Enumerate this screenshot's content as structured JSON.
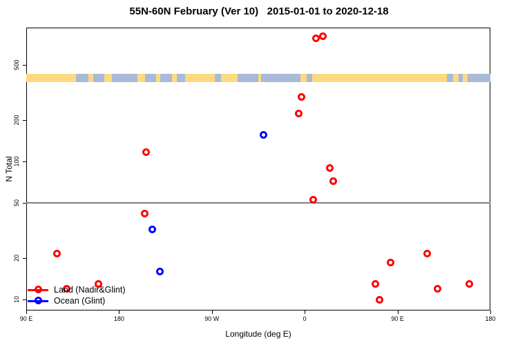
{
  "title": "55N-60N February (Ver 10)   2015-01-01 to 2020-12-18",
  "colors": {
    "land_series": "#FF0000",
    "ocean_series": "#0000FF",
    "map_land": "#FFD97F",
    "map_ocean": "#A8BAD8",
    "reference_line": "#808080",
    "axis": "#000000"
  },
  "legend": [
    {
      "label": "Land (Nadir&Glint)",
      "color": "#FF0000"
    },
    {
      "label": "Ocean (Glint)",
      "color": "#0000FF"
    }
  ],
  "chart_data": {
    "type": "scatter",
    "title": "55N-60N February (Ver 10)   2015-01-01 to 2020-12-18",
    "xlabel": "Longitude (deg E)",
    "ylabel": "N Total",
    "y_scale": "log",
    "x_axis_range_deg": [
      90,
      540
    ],
    "y_axis_range": [
      8.5,
      900
    ],
    "x_ticks": [
      {
        "value": 90,
        "label": "90 E"
      },
      {
        "value": 180,
        "label": "180"
      },
      {
        "value": 270,
        "label": "90 W"
      },
      {
        "value": 360,
        "label": "0"
      },
      {
        "value": 450,
        "label": "90 E"
      },
      {
        "value": 540,
        "label": "180"
      }
    ],
    "y_ticks": [
      {
        "value": 10,
        "label": "10"
      },
      {
        "value": 20,
        "label": "20"
      },
      {
        "value": 50,
        "label": "50"
      },
      {
        "value": 100,
        "label": "100"
      },
      {
        "value": 200,
        "label": "200"
      },
      {
        "value": 500,
        "label": "500"
      }
    ],
    "reference_line_y": 50,
    "grid": false,
    "legend_position": "bottom-left",
    "note": "x values are axis degrees east of 0; values above 360 are the repeated 90E-180E band",
    "series": [
      {
        "name": "Land (Nadir&Glint)",
        "color": "#FF0000",
        "points": [
          {
            "x": 371,
            "y": 785
          },
          {
            "x": 377.5,
            "y": 805
          },
          {
            "x": 357,
            "y": 295
          },
          {
            "x": 354,
            "y": 222
          },
          {
            "x": 206,
            "y": 117
          },
          {
            "x": 384,
            "y": 90
          },
          {
            "x": 387.5,
            "y": 72
          },
          {
            "x": 368.5,
            "y": 53
          },
          {
            "x": 205,
            "y": 42
          },
          {
            "x": 119.5,
            "y": 21.5
          },
          {
            "x": 478.5,
            "y": 21.5
          },
          {
            "x": 443,
            "y": 18.5
          },
          {
            "x": 428.5,
            "y": 13
          },
          {
            "x": 160,
            "y": 13
          },
          {
            "x": 519.5,
            "y": 13
          },
          {
            "x": 129,
            "y": 12
          },
          {
            "x": 488.5,
            "y": 12
          },
          {
            "x": 432.5,
            "y": 10
          }
        ]
      },
      {
        "name": "Ocean (Glint)",
        "color": "#0000FF",
        "points": [
          {
            "x": 320,
            "y": 155
          },
          {
            "x": 212.5,
            "y": 32
          },
          {
            "x": 219.5,
            "y": 16
          }
        ]
      }
    ],
    "map_strip": {
      "description": "land/ocean longitude strip for 55N-60N",
      "segments": [
        [
          90,
          138,
          "land"
        ],
        [
          138,
          150,
          "ocean"
        ],
        [
          150,
          155,
          "land"
        ],
        [
          155,
          166,
          "ocean"
        ],
        [
          166,
          173,
          "land"
        ],
        [
          173,
          198,
          "ocean"
        ],
        [
          198,
          205,
          "land"
        ],
        [
          205,
          216,
          "ocean"
        ],
        [
          216,
          220,
          "land"
        ],
        [
          220,
          231,
          "ocean"
        ],
        [
          231,
          236,
          "land"
        ],
        [
          236,
          244,
          "ocean"
        ],
        [
          244,
          273,
          "land"
        ],
        [
          273,
          279,
          "ocean"
        ],
        [
          279,
          295,
          "land"
        ],
        [
          295,
          315,
          "ocean"
        ],
        [
          315,
          318,
          "land"
        ],
        [
          318,
          356,
          "ocean"
        ],
        [
          356,
          362,
          "land"
        ],
        [
          362,
          367,
          "ocean"
        ],
        [
          367,
          498,
          "land"
        ],
        [
          498,
          504,
          "ocean"
        ],
        [
          504,
          509,
          "land"
        ],
        [
          509,
          513,
          "ocean"
        ],
        [
          513,
          518,
          "land"
        ],
        [
          518,
          540,
          "ocean"
        ]
      ]
    }
  }
}
